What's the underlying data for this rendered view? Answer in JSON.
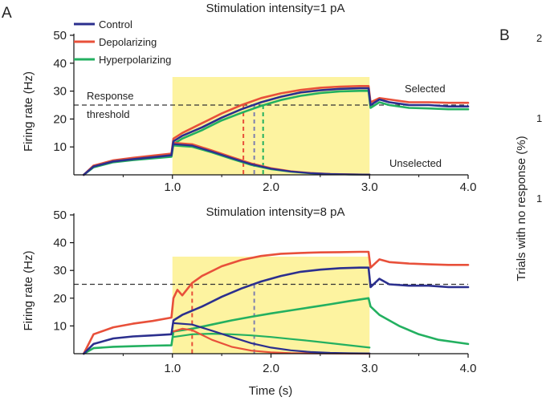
{
  "panels": {
    "a": "A",
    "b": "B"
  },
  "colors": {
    "control": "#2b2f8e",
    "depolarizing": "#e8503a",
    "hyperpolarizing": "#23b060",
    "stim_window": "#fdf3a0",
    "threshold": "#333333"
  },
  "legend": [
    {
      "label": "Control",
      "color": "#2b2f8e"
    },
    {
      "label": "Depolarizing",
      "color": "#e8503a"
    },
    {
      "label": "Hyperpolarizing",
      "color": "#23b060"
    }
  ],
  "annotations": {
    "response_threshold_1": "Response",
    "response_threshold_2": "threshold",
    "selected": "Selected",
    "unselected": "Unselected"
  },
  "panel_b_partial": {
    "ylabel": "Trials with no response (%)",
    "tick_top": "2",
    "tick_mid1": "1",
    "tick_mid2": "1"
  },
  "chart_data": [
    {
      "type": "line",
      "title": "Stimulation intensity=1 pA",
      "xlabel": "",
      "ylabel": "Firing rate (Hz)",
      "xlim": [
        0,
        4
      ],
      "ylim": [
        0,
        50
      ],
      "xticks": [
        "1.0",
        "2.0",
        "3.0",
        "4.0"
      ],
      "yticks": [
        "10",
        "20",
        "30",
        "40",
        "50"
      ],
      "stimulus_window": [
        1.0,
        3.0
      ],
      "threshold": 25,
      "crossings": [
        {
          "series": "Depolarizing",
          "x": 1.72
        },
        {
          "series": "Control",
          "x": 1.83
        },
        {
          "series": "Hyperpolarizing",
          "x": 1.92
        }
      ],
      "series": [
        {
          "name": "Control",
          "group": "selected",
          "x": [
            0.1,
            0.2,
            0.4,
            0.6,
            0.8,
            0.99,
            1.01,
            1.1,
            1.3,
            1.5,
            1.7,
            1.9,
            2.1,
            2.3,
            2.5,
            2.7,
            2.9,
            2.99,
            3.01,
            3.1,
            3.2,
            3.4,
            3.6,
            3.8,
            4.0
          ],
          "y": [
            0,
            3,
            4.8,
            5.6,
            6.3,
            7.0,
            12,
            14,
            17,
            20.5,
            23.5,
            26,
            28,
            29.5,
            30.3,
            30.8,
            31,
            31,
            25,
            27,
            26,
            25,
            25,
            24.5,
            24.5
          ]
        },
        {
          "name": "Depolarizing",
          "group": "selected",
          "x": [
            0.1,
            0.2,
            0.4,
            0.6,
            0.8,
            0.99,
            1.01,
            1.1,
            1.3,
            1.5,
            1.7,
            1.9,
            2.1,
            2.3,
            2.5,
            2.7,
            2.9,
            2.99,
            3.01,
            3.1,
            3.2,
            3.4,
            3.6,
            3.8,
            4.0
          ],
          "y": [
            0,
            3.3,
            5.2,
            6.1,
            6.9,
            7.6,
            13,
            15,
            18.5,
            22,
            25,
            27.5,
            29.2,
            30.4,
            31.2,
            31.6,
            31.8,
            31.8,
            26,
            27.5,
            27,
            26,
            26,
            25.8,
            25.8
          ]
        },
        {
          "name": "Hyperpolarizing",
          "group": "selected",
          "x": [
            0.1,
            0.2,
            0.4,
            0.6,
            0.8,
            0.99,
            1.01,
            1.1,
            1.3,
            1.5,
            1.7,
            1.9,
            2.1,
            2.3,
            2.5,
            2.7,
            2.9,
            2.99,
            3.01,
            3.1,
            3.2,
            3.4,
            3.6,
            3.8,
            4.0
          ],
          "y": [
            0,
            2.7,
            4.5,
            5.3,
            5.9,
            6.5,
            11,
            13,
            16,
            19.5,
            22.2,
            24.7,
            26.8,
            28.3,
            29.3,
            29.9,
            30.1,
            30.1,
            24,
            26,
            25,
            24,
            23.8,
            23.5,
            23.5
          ]
        },
        {
          "name": "Control",
          "group": "unselected",
          "x": [
            1.01,
            1.2,
            1.4,
            1.6,
            1.8,
            2.0,
            2.2,
            2.4,
            2.6,
            2.8,
            3.0
          ],
          "y": [
            11,
            10.5,
            8.3,
            6,
            3.8,
            2.2,
            1.2,
            0.6,
            0.3,
            0.15,
            0.1
          ]
        },
        {
          "name": "Depolarizing",
          "group": "unselected",
          "x": [
            1.01,
            1.2,
            1.4,
            1.6,
            1.8,
            2.0,
            2.2,
            2.4,
            2.6,
            2.8,
            3.0
          ],
          "y": [
            11.5,
            11,
            8.8,
            6.4,
            4.1,
            2.4,
            1.3,
            0.7,
            0.35,
            0.18,
            0.1
          ]
        },
        {
          "name": "Hyperpolarizing",
          "group": "unselected",
          "x": [
            1.01,
            1.2,
            1.4,
            1.6,
            1.8,
            2.0,
            2.2,
            2.4,
            2.6,
            2.8,
            3.0
          ],
          "y": [
            10.5,
            10,
            8,
            5.7,
            3.5,
            2.0,
            1.1,
            0.55,
            0.28,
            0.14,
            0.1
          ]
        }
      ]
    },
    {
      "type": "line",
      "title": "Stimulation intensity=8 pA",
      "xlabel": "Time (s)",
      "ylabel": "Firing rate (Hz)",
      "xlim": [
        0,
        4
      ],
      "ylim": [
        0,
        50
      ],
      "xticks": [
        "1.0",
        "2.0",
        "3.0",
        "4.0"
      ],
      "yticks": [
        "10",
        "20",
        "30",
        "40",
        "50"
      ],
      "stimulus_window": [
        1.0,
        3.0
      ],
      "threshold": 25,
      "crossings": [
        {
          "series": "Depolarizing",
          "x": 1.2
        },
        {
          "series": "Control",
          "x": 1.83
        }
      ],
      "series": [
        {
          "name": "Control",
          "group": "selected",
          "x": [
            0.1,
            0.2,
            0.4,
            0.6,
            0.8,
            0.99,
            1.01,
            1.1,
            1.3,
            1.5,
            1.7,
            1.9,
            2.1,
            2.3,
            2.5,
            2.7,
            2.9,
            2.99,
            3.01,
            3.1,
            3.2,
            3.4,
            3.6,
            3.8,
            4.0
          ],
          "y": [
            0,
            3.5,
            5.5,
            6.2,
            6.6,
            7,
            12,
            14,
            17,
            20.5,
            23.5,
            26,
            28,
            29.5,
            30.3,
            30.8,
            31,
            31,
            24,
            27,
            25,
            24.5,
            24.5,
            24,
            24
          ]
        },
        {
          "name": "Depolarizing",
          "group": "selected",
          "x": [
            0.1,
            0.2,
            0.4,
            0.6,
            0.8,
            0.99,
            1.01,
            1.05,
            1.1,
            1.2,
            1.3,
            1.5,
            1.7,
            1.9,
            2.1,
            2.3,
            2.5,
            2.7,
            2.9,
            2.99,
            3.01,
            3.1,
            3.2,
            3.4,
            3.6,
            3.8,
            4.0
          ],
          "y": [
            0,
            7,
            9.5,
            10.8,
            11.8,
            13,
            20,
            23,
            21,
            25.5,
            28,
            31.5,
            33.8,
            35.2,
            36,
            36.3,
            36.5,
            36.6,
            36.7,
            36.7,
            31,
            34,
            33,
            32.5,
            32.2,
            32,
            32
          ]
        },
        {
          "name": "Hyperpolarizing",
          "group": "selected",
          "x": [
            0.1,
            0.2,
            0.4,
            0.6,
            0.8,
            0.99,
            1.01,
            1.2,
            1.4,
            1.6,
            1.8,
            2.0,
            2.2,
            2.4,
            2.6,
            2.8,
            2.99,
            3.01,
            3.1,
            3.3,
            3.5,
            3.7,
            4.0
          ],
          "y": [
            0,
            2,
            2.5,
            2.7,
            2.9,
            3,
            8,
            9,
            10.5,
            12,
            13.3,
            14.5,
            15.6,
            16.7,
            17.8,
            19,
            20,
            17,
            14,
            10,
            7,
            5,
            3.5
          ]
        },
        {
          "name": "Control",
          "group": "unselected",
          "x": [
            1.01,
            1.2,
            1.4,
            1.6,
            1.8,
            2.0,
            2.2,
            2.4,
            2.6,
            2.8,
            3.0
          ],
          "y": [
            11,
            10.5,
            8.3,
            6,
            3.8,
            2.2,
            1.2,
            0.6,
            0.3,
            0.15,
            0.1
          ]
        },
        {
          "name": "Depolarizing",
          "group": "unselected",
          "x": [
            1.01,
            1.1,
            1.2,
            1.4,
            1.6,
            1.8,
            2.0,
            2.2,
            2.5,
            3.0
          ],
          "y": [
            8,
            9,
            8.5,
            5,
            2.5,
            1.1,
            0.5,
            0.2,
            0.1,
            0
          ]
        },
        {
          "name": "Hyperpolarizing",
          "group": "unselected",
          "x": [
            1.01,
            1.2,
            1.4,
            1.6,
            1.8,
            2.0,
            2.2,
            2.4,
            2.6,
            2.8,
            3.0
          ],
          "y": [
            6,
            7,
            7.2,
            7,
            6.6,
            6,
            5.3,
            4.6,
            3.8,
            3,
            2.2
          ]
        }
      ]
    }
  ]
}
